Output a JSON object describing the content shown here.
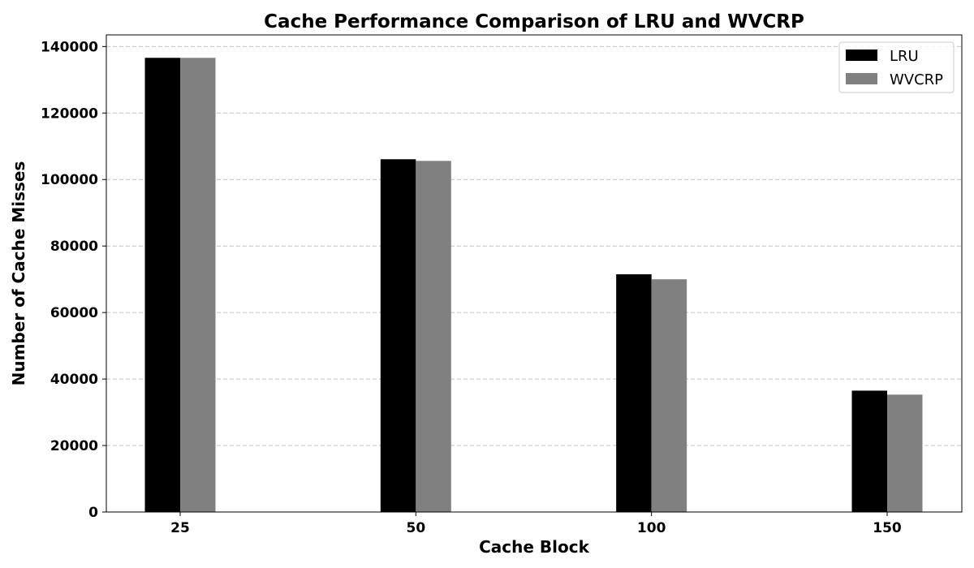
{
  "chart_data": {
    "type": "bar",
    "title": "Cache Performance Comparison of LRU and WVCRP",
    "xlabel": "Cache Block",
    "ylabel": "Number of Cache Misses",
    "categories": [
      "25",
      "50",
      "100",
      "150"
    ],
    "series": [
      {
        "name": "LRU",
        "color": "#000000",
        "values": [
          136600,
          106100,
          71500,
          36500
        ]
      },
      {
        "name": "WVCRP",
        "color": "#808080",
        "values": [
          136600,
          105600,
          70000,
          35300
        ]
      }
    ],
    "ylim": [
      0,
      143500
    ],
    "yticks": [
      0,
      20000,
      40000,
      60000,
      80000,
      100000,
      120000,
      140000
    ],
    "grid": "y-dashed",
    "legend_position": "top-right"
  }
}
